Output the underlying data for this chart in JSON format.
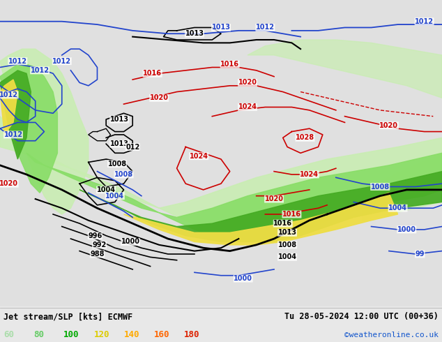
{
  "title_left": "Jet stream/SLP [kts] ECMWF",
  "title_right": "Tu 28-05-2024 12:00 UTC (00+36)",
  "credit": "©weatheronline.co.uk",
  "legend_values": [
    60,
    80,
    100,
    120,
    140,
    160,
    180
  ],
  "legend_colors": [
    "#aaddaa",
    "#66cc66",
    "#00aa00",
    "#ddcc00",
    "#ffaa00",
    "#ff6600",
    "#dd2200"
  ],
  "bg_color": "#e8e8e8",
  "land_color": "#e0e0e0",
  "ocean_color": "#d8e4f0",
  "figsize": [
    6.34,
    4.9
  ],
  "dpi": 100
}
